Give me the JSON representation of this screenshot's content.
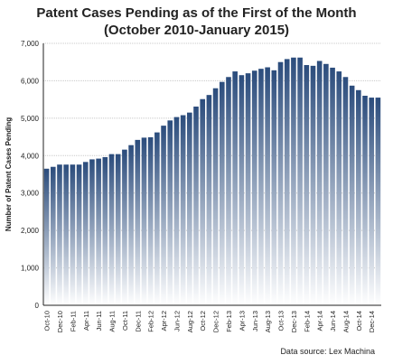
{
  "chart_data": {
    "type": "bar",
    "title_line1": "Patent Cases Pending as of the First of the Month",
    "title_line2": "(October 2010-January 2015)",
    "ylabel": "Number of Patent Cases Pending",
    "xlabel": "",
    "ylim": [
      0,
      7000
    ],
    "y_ticks": [
      "0",
      "1,000",
      "2,000",
      "3,000",
      "4,000",
      "5,000",
      "6,000",
      "7,000"
    ],
    "y_tick_values": [
      0,
      1000,
      2000,
      3000,
      4000,
      5000,
      6000,
      7000
    ],
    "grid": true,
    "source": "Data source: Lex Machina",
    "categories": [
      "Oct-10",
      "Nov-10",
      "Dec-10",
      "Jan-11",
      "Feb-11",
      "Mar-11",
      "Apr-11",
      "May-11",
      "Jun-11",
      "Jul-11",
      "Aug-11",
      "Sep-11",
      "Oct-11",
      "Nov-11",
      "Dec-11",
      "Jan-12",
      "Feb-12",
      "Mar-12",
      "Apr-12",
      "May-12",
      "Jun-12",
      "Jul-12",
      "Aug-12",
      "Sep-12",
      "Oct-12",
      "Nov-12",
      "Dec-12",
      "Jan-13",
      "Feb-13",
      "Mar-13",
      "Apr-13",
      "May-13",
      "Jun-13",
      "Jul-13",
      "Aug-13",
      "Sep-13",
      "Oct-13",
      "Nov-13",
      "Dec-13",
      "Jan-14",
      "Feb-14",
      "Mar-14",
      "Apr-14",
      "May-14",
      "Jun-14",
      "Jul-14",
      "Aug-14",
      "Sep-14",
      "Oct-14",
      "Nov-14",
      "Dec-14",
      "Jan-15"
    ],
    "tick_labels": [
      "Oct-10",
      "Dec-10",
      "Feb-11",
      "Apr-11",
      "Jun-11",
      "Aug-11",
      "Oct-11",
      "Dec-11",
      "Feb-12",
      "Apr-12",
      "Jun-12",
      "Aug-12",
      "Oct-12",
      "Dec-12",
      "Feb-13",
      "Apr-13",
      "Jun-13",
      "Aug-13",
      "Oct-13",
      "Dec-13",
      "Feb-14",
      "Apr-14",
      "Jun-14",
      "Aug-14",
      "Oct-14",
      "Dec-14"
    ],
    "values": [
      3650,
      3700,
      3760,
      3760,
      3760,
      3760,
      3830,
      3900,
      3920,
      3960,
      4040,
      4040,
      4160,
      4280,
      4420,
      4480,
      4490,
      4620,
      4800,
      4940,
      5030,
      5080,
      5150,
      5310,
      5510,
      5620,
      5800,
      5970,
      6100,
      6250,
      6150,
      6200,
      6270,
      6320,
      6360,
      6280,
      6500,
      6580,
      6620,
      6620,
      6420,
      6400,
      6530,
      6450,
      6350,
      6250,
      6100,
      5870,
      5750,
      5600,
      5550,
      5550
    ],
    "colors": {
      "bar_top": "#2b4c7c",
      "bar_bottom": "#ffffff",
      "grid": "#c8c8c8",
      "axis": "#222222",
      "text": "#222222"
    }
  }
}
